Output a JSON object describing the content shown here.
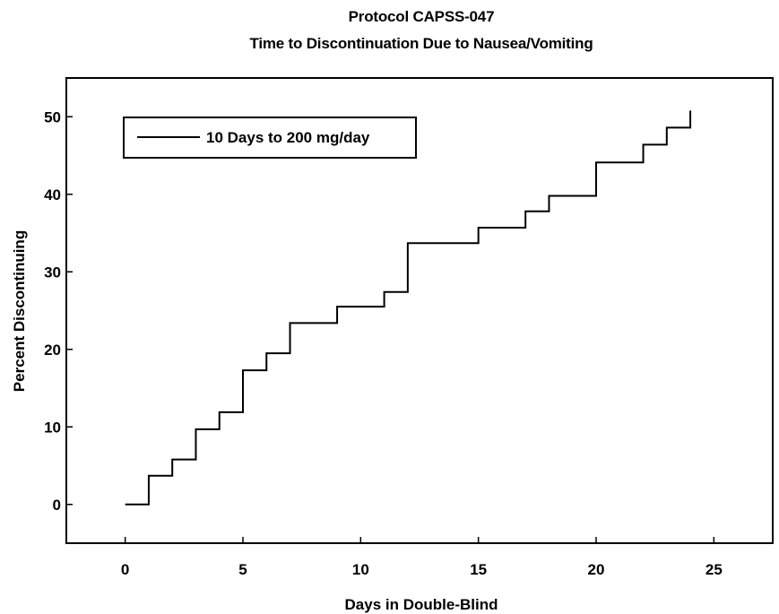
{
  "chart_data": {
    "type": "line",
    "line_style": "step",
    "title": "Protocol CAPSS-047",
    "subtitle": "Time to Discontinuation Due to Nausea/Vomiting",
    "xlabel": "Days in Double-Blind",
    "ylabel": "Percent Discontinuing",
    "xlim": [
      -2.5,
      27.5
    ],
    "ylim": [
      -5,
      55
    ],
    "xticks": [
      0,
      5,
      10,
      15,
      20,
      25
    ],
    "yticks": [
      0,
      10,
      20,
      30,
      40,
      50
    ],
    "grid": false,
    "legend_position": "top-left",
    "series": [
      {
        "name": "10 Days to 200 mg/day",
        "color": "#000000",
        "x": [
          0,
          1,
          2,
          3,
          4,
          5,
          6,
          7,
          9,
          11,
          12,
          15,
          17,
          18,
          20,
          22,
          23,
          24
        ],
        "y": [
          0,
          3.7,
          5.8,
          9.7,
          11.9,
          17.3,
          19.5,
          23.4,
          25.5,
          27.4,
          33.7,
          35.7,
          37.8,
          39.8,
          44.1,
          46.4,
          48.6,
          50.8
        ]
      }
    ]
  }
}
